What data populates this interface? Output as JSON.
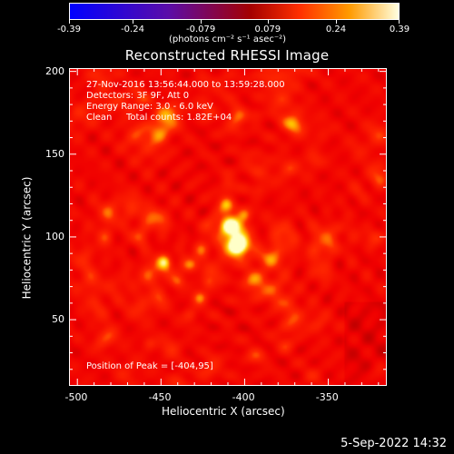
{
  "colorbar": {
    "ticks": [
      "-0.39",
      "-0.24",
      "-0.079",
      "0.079",
      "0.24",
      "0.39"
    ],
    "units": "(photons cm⁻² s⁻¹ asec⁻²)"
  },
  "title": "Reconstructed RHESSI Image",
  "info": {
    "time": "27-Nov-2016 13:56:44.000 to 13:59:28.000",
    "detectors": "Detectors: 3F 9F, Att 0",
    "energy": "Energy Range: 3.0 - 6.0 keV",
    "method": "Clean",
    "counts": "Total counts: 1.82E+04",
    "peak": "Position of Peak = [-404,95]"
  },
  "chart_data": {
    "type": "heatmap",
    "title": "Reconstructed RHESSI Image",
    "xlabel": "Heliocentric X (arcsec)",
    "ylabel": "Heliocentric Y (arcsec)",
    "xlim": [
      -505,
      -315
    ],
    "ylim": [
      10,
      202
    ],
    "x_ticks": [
      "-500",
      "-450",
      "-400",
      "-350"
    ],
    "y_ticks": [
      "50",
      "100",
      "150",
      "200"
    ],
    "colorbar_range": [
      -0.39,
      0.39
    ],
    "peak": [
      -404,
      95
    ],
    "colors": [
      "#0000ff",
      "#5b0ca8",
      "#a50000",
      "#ff3000",
      "#ff9a00",
      "#ffffe0"
    ]
  },
  "footer": "5-Sep-2022 14:32"
}
